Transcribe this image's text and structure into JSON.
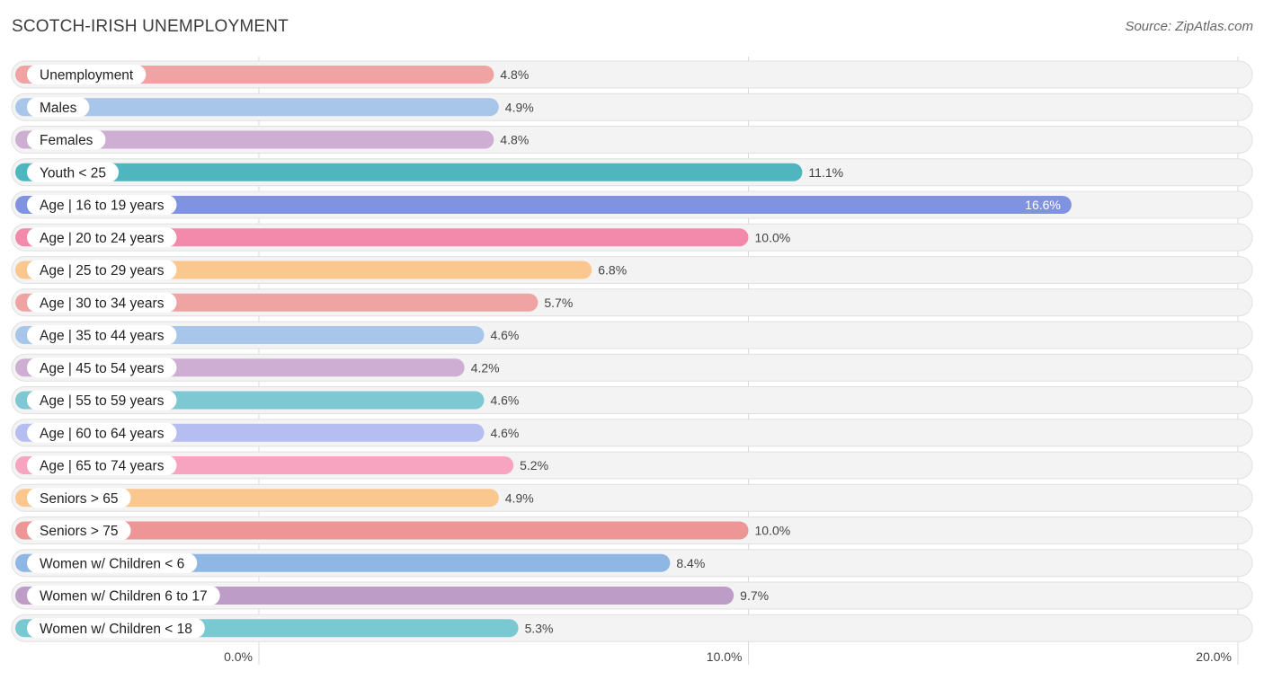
{
  "header": {
    "title": "SCOTCH-IRISH UNEMPLOYMENT",
    "source": "Source: ZipAtlas.com"
  },
  "chart_data": {
    "type": "bar",
    "orientation": "horizontal",
    "categories": [
      "Unemployment",
      "Males",
      "Females",
      "Youth < 25",
      "Age | 16 to 19 years",
      "Age | 20 to 24 years",
      "Age | 25 to 29 years",
      "Age | 30 to 34 years",
      "Age | 35 to 44 years",
      "Age | 45 to 54 years",
      "Age | 55 to 59 years",
      "Age | 60 to 64 years",
      "Age | 65 to 74 years",
      "Seniors > 65",
      "Seniors > 75",
      "Women w/ Children < 6",
      "Women w/ Children 6 to 17",
      "Women w/ Children < 18"
    ],
    "values": [
      4.8,
      4.9,
      4.8,
      11.1,
      16.6,
      10.0,
      6.8,
      5.7,
      4.6,
      4.2,
      4.6,
      4.6,
      5.2,
      4.9,
      10.0,
      8.4,
      9.7,
      5.3
    ],
    "value_labels": [
      "4.8%",
      "4.9%",
      "4.8%",
      "11.1%",
      "16.6%",
      "10.0%",
      "6.8%",
      "5.7%",
      "4.6%",
      "4.2%",
      "4.6%",
      "4.6%",
      "5.2%",
      "4.9%",
      "10.0%",
      "8.4%",
      "9.7%",
      "5.3%"
    ],
    "colors": [
      "#f0a3a3",
      "#a7c6ea",
      "#cfaed3",
      "#4fb6c0",
      "#7f93e0",
      "#f48aab",
      "#fac78f",
      "#f0a3a3",
      "#a7c6ea",
      "#cfaed3",
      "#7ec8d3",
      "#b6bdf0",
      "#f7a4c0",
      "#fac78f",
      "#ee9696",
      "#8fb7e6",
      "#be9cc8",
      "#7ac9d2"
    ],
    "xlim": [
      0,
      20
    ],
    "ticks": [
      0,
      10,
      20
    ],
    "tick_labels": [
      "0.0%",
      "10.0%",
      "20.0%"
    ],
    "grid": true
  }
}
